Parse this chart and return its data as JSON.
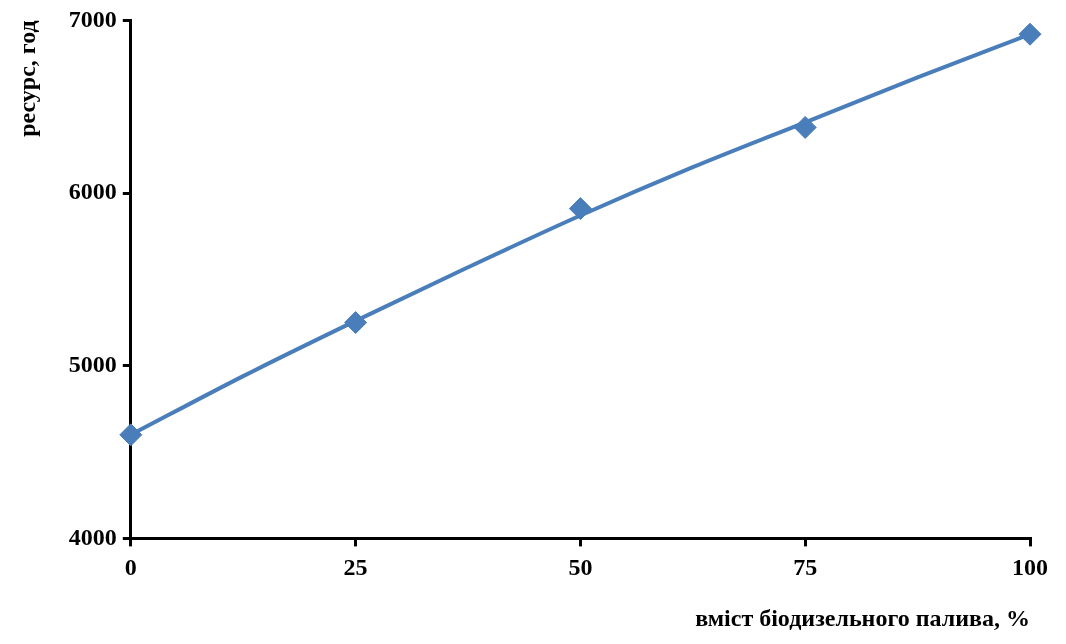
{
  "chart_data": {
    "type": "scatter",
    "xlabel": "вміст біодизельного палива, %",
    "ylabel": "ресурс, год",
    "xlim": [
      0,
      100
    ],
    "xticks": [
      0,
      25,
      50,
      75,
      100
    ],
    "ylim": [
      4000,
      7000
    ],
    "yticks": [
      4000,
      5000,
      6000,
      7000
    ],
    "grid": false,
    "legend": false,
    "marker": "diamond",
    "x": [
      0,
      25,
      50,
      75,
      100
    ],
    "series": [
      {
        "color": "#4a7ebb",
        "values": [
          4600,
          5250,
          5910,
          6380,
          6920
        ]
      },
      {
        "type": "line",
        "color": "#4a7ebb",
        "marker": "none",
        "x": [
          0,
          12.5,
          25,
          37.5,
          50,
          62.5,
          75,
          87.5,
          100
        ],
        "values": [
          4600,
          4940,
          5260,
          5570,
          5870,
          6150,
          6410,
          6670,
          6920
        ]
      }
    ]
  }
}
